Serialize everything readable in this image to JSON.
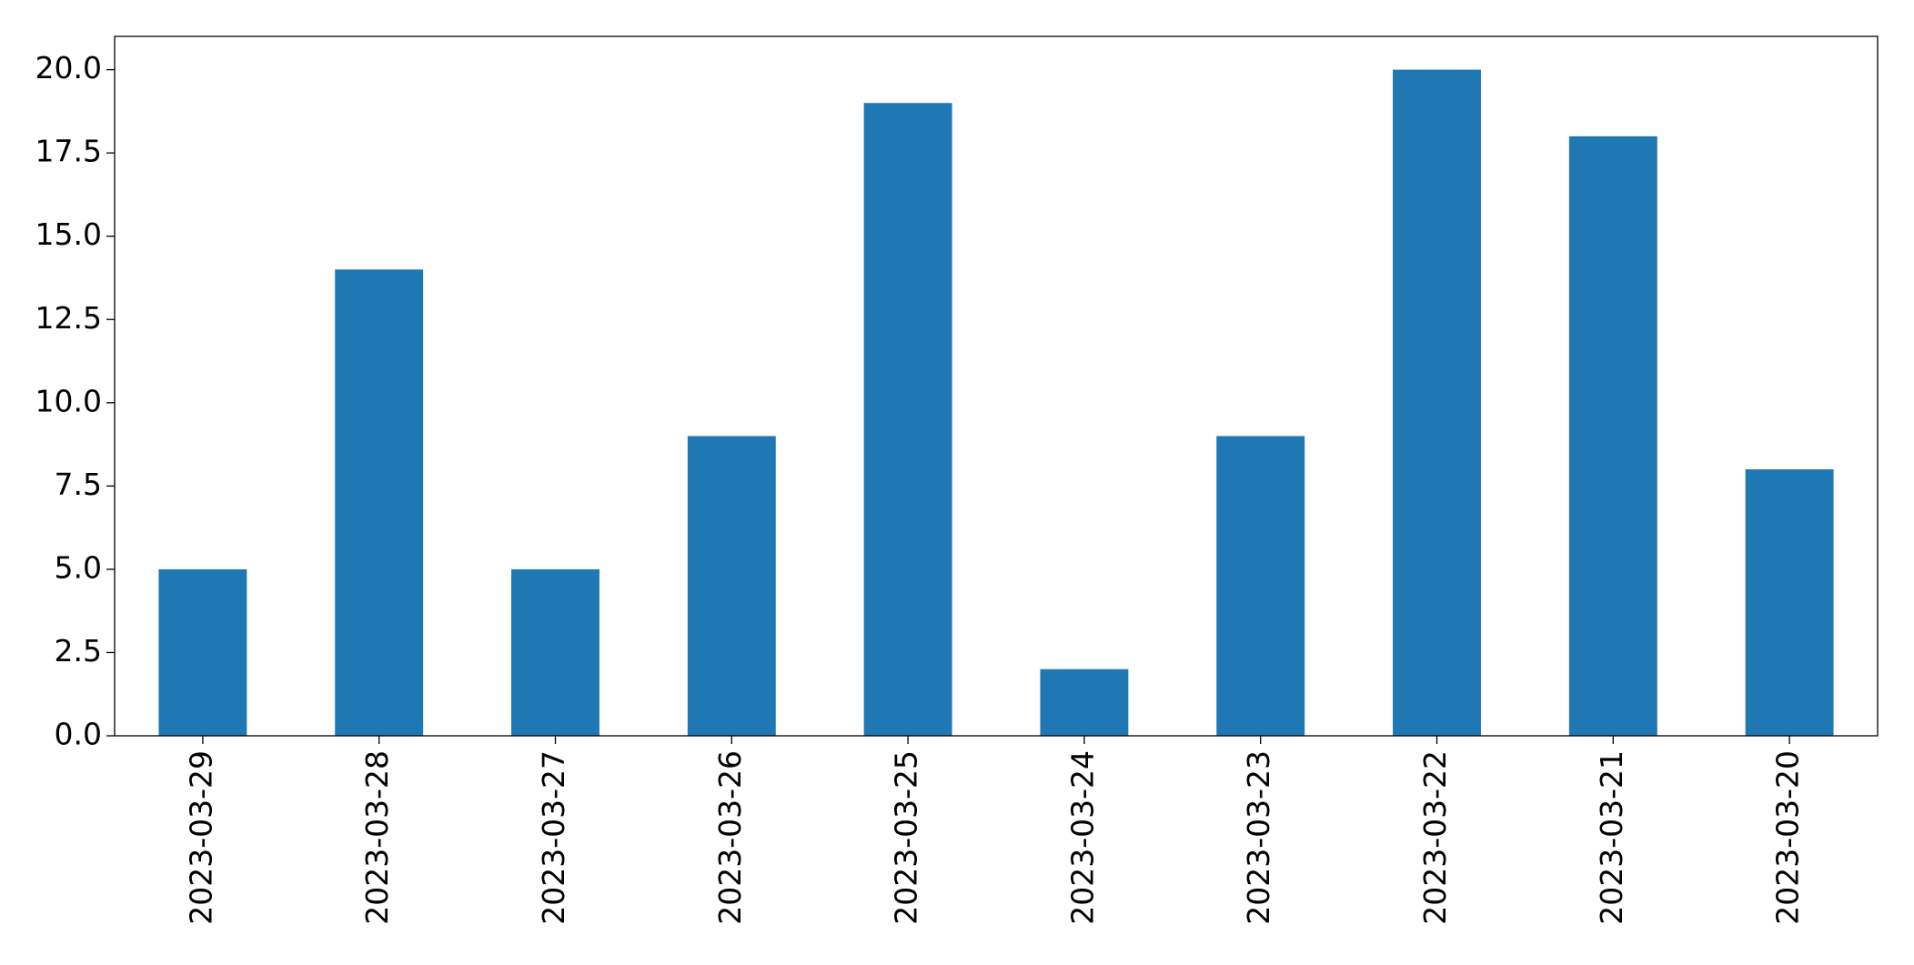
{
  "chart_data": {
    "type": "bar",
    "categories": [
      "2023-03-29",
      "2023-03-28",
      "2023-03-27",
      "2023-03-26",
      "2023-03-25",
      "2023-03-24",
      "2023-03-23",
      "2023-03-22",
      "2023-03-21",
      "2023-03-20"
    ],
    "values": [
      5,
      14,
      5,
      9,
      19,
      2,
      9,
      20,
      18,
      8
    ],
    "color": "#1f77b4",
    "ylim": [
      0,
      21
    ],
    "yticks": [
      {
        "value": 0,
        "label": "0.0"
      },
      {
        "value": 2.5,
        "label": "2.5"
      },
      {
        "value": 5,
        "label": "5.0"
      },
      {
        "value": 7.5,
        "label": "7.5"
      },
      {
        "value": 10,
        "label": "10.0"
      },
      {
        "value": 12.5,
        "label": "12.5"
      },
      {
        "value": 15,
        "label": "15.0"
      },
      {
        "value": 17.5,
        "label": "17.5"
      },
      {
        "value": 20,
        "label": "20.0"
      }
    ],
    "grid": false
  }
}
